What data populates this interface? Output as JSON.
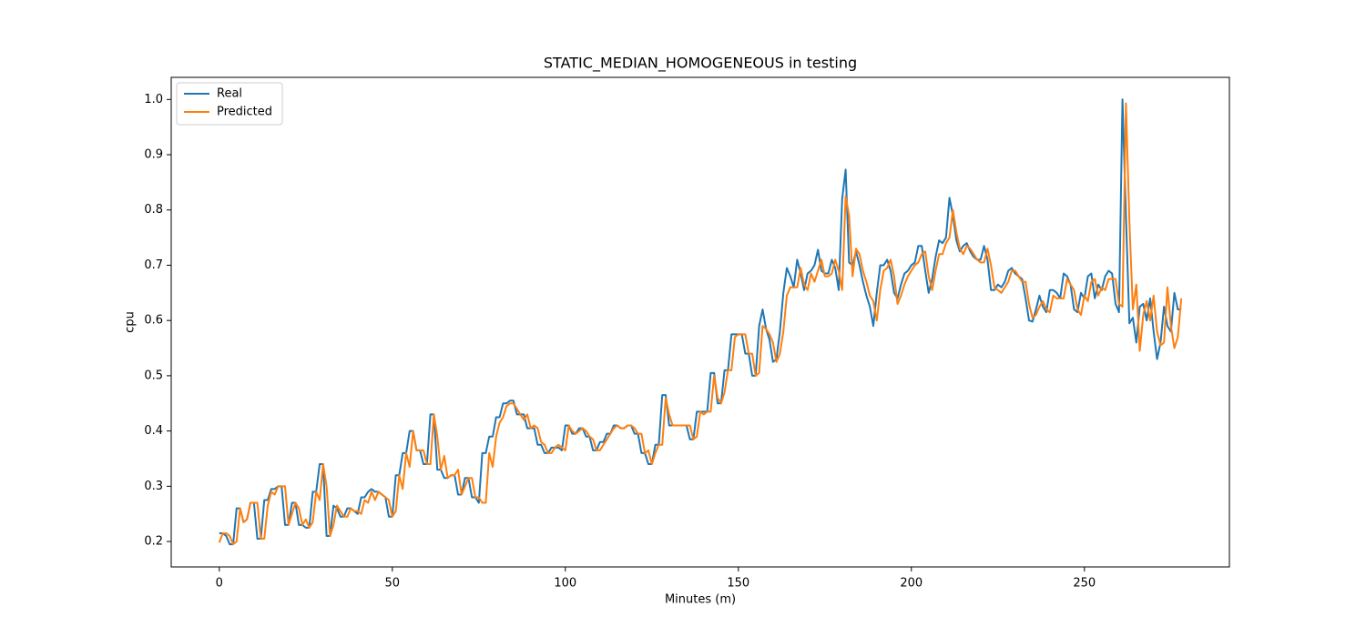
{
  "chart_data": {
    "type": "line",
    "title": "STATIC_MEDIAN_HOMOGENEOUS in testing",
    "xlabel": "Minutes (m)",
    "ylabel": "cpu",
    "x": [
      0,
      1,
      2,
      3,
      4,
      5,
      6,
      7,
      8,
      9,
      10,
      11,
      12,
      13,
      14,
      15,
      16,
      17,
      18,
      19,
      20,
      21,
      22,
      23,
      24,
      25,
      26,
      27,
      28,
      29,
      30,
      31,
      32,
      33,
      34,
      35,
      36,
      37,
      38,
      39,
      40,
      41,
      42,
      43,
      44,
      45,
      46,
      47,
      48,
      49,
      50,
      51,
      52,
      53,
      54,
      55,
      56,
      57,
      58,
      59,
      60,
      61,
      62,
      63,
      64,
      65,
      66,
      67,
      68,
      69,
      70,
      71,
      72,
      73,
      74,
      75,
      76,
      77,
      78,
      79,
      80,
      81,
      82,
      83,
      84,
      85,
      86,
      87,
      88,
      89,
      90,
      91,
      92,
      93,
      94,
      95,
      96,
      97,
      98,
      99,
      100,
      101,
      102,
      103,
      104,
      105,
      106,
      107,
      108,
      109,
      110,
      111,
      112,
      113,
      114,
      115,
      116,
      117,
      118,
      119,
      120,
      121,
      122,
      123,
      124,
      125,
      126,
      127,
      128,
      129,
      130,
      131,
      132,
      133,
      134,
      135,
      136,
      137,
      138,
      139,
      140,
      141,
      142,
      143,
      144,
      145,
      146,
      147,
      148,
      149,
      150,
      151,
      152,
      153,
      154,
      155,
      156,
      157,
      158,
      159,
      160,
      161,
      162,
      163,
      164,
      165,
      166,
      167,
      168,
      169,
      170,
      171,
      172,
      173,
      174,
      175,
      176,
      177,
      178,
      179,
      180,
      181,
      182,
      183,
      184,
      185,
      186,
      187,
      188,
      189,
      190,
      191,
      192,
      193,
      194,
      195,
      196,
      197,
      198,
      199,
      200,
      201,
      202,
      203,
      204,
      205,
      206,
      207,
      208,
      209,
      210,
      211,
      212,
      213,
      214,
      215,
      216,
      217,
      218,
      219,
      220,
      221,
      222,
      223,
      224,
      225,
      226,
      227,
      228,
      229,
      230,
      231,
      232,
      233,
      234,
      235,
      236,
      237,
      238,
      239,
      240,
      241,
      242,
      243,
      244,
      245,
      246,
      247,
      248,
      249,
      250,
      251,
      252,
      253,
      254,
      255,
      256,
      257,
      258,
      259,
      260,
      261,
      262,
      263,
      264,
      265,
      266,
      267,
      268,
      269,
      270,
      271,
      272,
      273,
      274,
      275,
      276,
      277,
      278
    ],
    "series": [
      {
        "name": "Real",
        "color": "#1f77b4",
        "values": [
          0.215,
          0.215,
          0.21,
          0.195,
          0.195,
          0.26,
          0.26,
          0.235,
          0.24,
          0.27,
          0.27,
          0.205,
          0.205,
          0.275,
          0.275,
          0.295,
          0.295,
          0.3,
          0.3,
          0.23,
          0.23,
          0.27,
          0.27,
          0.23,
          0.23,
          0.225,
          0.225,
          0.29,
          0.29,
          0.34,
          0.34,
          0.21,
          0.21,
          0.265,
          0.26,
          0.245,
          0.245,
          0.26,
          0.26,
          0.255,
          0.25,
          0.28,
          0.28,
          0.29,
          0.295,
          0.29,
          0.29,
          0.285,
          0.28,
          0.245,
          0.245,
          0.32,
          0.32,
          0.36,
          0.36,
          0.4,
          0.4,
          0.365,
          0.365,
          0.34,
          0.34,
          0.43,
          0.43,
          0.33,
          0.33,
          0.315,
          0.315,
          0.32,
          0.32,
          0.285,
          0.285,
          0.315,
          0.315,
          0.28,
          0.28,
          0.27,
          0.36,
          0.36,
          0.39,
          0.39,
          0.425,
          0.425,
          0.45,
          0.45,
          0.455,
          0.455,
          0.43,
          0.43,
          0.43,
          0.405,
          0.405,
          0.405,
          0.375,
          0.375,
          0.36,
          0.36,
          0.37,
          0.37,
          0.37,
          0.365,
          0.41,
          0.41,
          0.395,
          0.395,
          0.405,
          0.405,
          0.39,
          0.39,
          0.365,
          0.365,
          0.38,
          0.38,
          0.395,
          0.395,
          0.41,
          0.41,
          0.405,
          0.405,
          0.41,
          0.41,
          0.395,
          0.395,
          0.36,
          0.36,
          0.34,
          0.34,
          0.375,
          0.375,
          0.465,
          0.465,
          0.41,
          0.41,
          0.41,
          0.41,
          0.41,
          0.41,
          0.385,
          0.385,
          0.435,
          0.435,
          0.435,
          0.435,
          0.505,
          0.505,
          0.45,
          0.45,
          0.51,
          0.51,
          0.575,
          0.575,
          0.575,
          0.575,
          0.54,
          0.54,
          0.5,
          0.5,
          0.59,
          0.62,
          0.585,
          0.565,
          0.525,
          0.53,
          0.58,
          0.65,
          0.695,
          0.68,
          0.66,
          0.71,
          0.685,
          0.655,
          0.685,
          0.69,
          0.7,
          0.728,
          0.69,
          0.685,
          0.685,
          0.71,
          0.695,
          0.655,
          0.82,
          0.873,
          0.705,
          0.7,
          0.725,
          0.7,
          0.67,
          0.645,
          0.625,
          0.59,
          0.65,
          0.7,
          0.7,
          0.71,
          0.69,
          0.65,
          0.64,
          0.665,
          0.685,
          0.69,
          0.7,
          0.705,
          0.735,
          0.735,
          0.69,
          0.65,
          0.675,
          0.715,
          0.745,
          0.74,
          0.75,
          0.822,
          0.79,
          0.745,
          0.725,
          0.735,
          0.74,
          0.725,
          0.715,
          0.71,
          0.71,
          0.735,
          0.71,
          0.655,
          0.655,
          0.665,
          0.66,
          0.67,
          0.69,
          0.695,
          0.685,
          0.68,
          0.675,
          0.64,
          0.6,
          0.598,
          0.62,
          0.645,
          0.625,
          0.615,
          0.655,
          0.655,
          0.65,
          0.64,
          0.685,
          0.68,
          0.665,
          0.62,
          0.615,
          0.65,
          0.64,
          0.68,
          0.685,
          0.64,
          0.665,
          0.655,
          0.68,
          0.69,
          0.685,
          0.63,
          0.615,
          1.0,
          0.79,
          0.595,
          0.605,
          0.56,
          0.625,
          0.63,
          0.6,
          0.64,
          0.58,
          0.53,
          0.56,
          0.625,
          0.59,
          0.58,
          0.65,
          0.62,
          0.62
        ]
      },
      {
        "name": "Predicted",
        "color": "#ff7f0e",
        "values": [
          0.198,
          0.215,
          0.215,
          0.21,
          0.195,
          0.2,
          0.26,
          0.235,
          0.24,
          0.27,
          0.27,
          0.27,
          0.205,
          0.205,
          0.265,
          0.29,
          0.285,
          0.3,
          0.3,
          0.3,
          0.23,
          0.25,
          0.27,
          0.26,
          0.23,
          0.24,
          0.225,
          0.235,
          0.29,
          0.275,
          0.34,
          0.3,
          0.21,
          0.23,
          0.265,
          0.255,
          0.245,
          0.245,
          0.26,
          0.255,
          0.255,
          0.25,
          0.275,
          0.27,
          0.29,
          0.275,
          0.29,
          0.285,
          0.28,
          0.275,
          0.245,
          0.255,
          0.32,
          0.295,
          0.36,
          0.335,
          0.4,
          0.365,
          0.365,
          0.365,
          0.34,
          0.34,
          0.43,
          0.39,
          0.33,
          0.355,
          0.315,
          0.32,
          0.32,
          0.33,
          0.285,
          0.3,
          0.315,
          0.315,
          0.28,
          0.28,
          0.27,
          0.27,
          0.36,
          0.335,
          0.39,
          0.415,
          0.425,
          0.445,
          0.45,
          0.45,
          0.44,
          0.43,
          0.42,
          0.43,
          0.405,
          0.41,
          0.405,
          0.38,
          0.375,
          0.36,
          0.36,
          0.37,
          0.375,
          0.37,
          0.365,
          0.41,
          0.4,
          0.395,
          0.4,
          0.405,
          0.4,
          0.39,
          0.385,
          0.365,
          0.365,
          0.375,
          0.385,
          0.395,
          0.405,
          0.41,
          0.405,
          0.405,
          0.41,
          0.41,
          0.405,
          0.395,
          0.395,
          0.36,
          0.365,
          0.34,
          0.36,
          0.375,
          0.375,
          0.46,
          0.43,
          0.41,
          0.41,
          0.41,
          0.41,
          0.41,
          0.41,
          0.385,
          0.39,
          0.435,
          0.43,
          0.435,
          0.435,
          0.5,
          0.46,
          0.45,
          0.47,
          0.51,
          0.51,
          0.57,
          0.575,
          0.575,
          0.575,
          0.54,
          0.54,
          0.5,
          0.505,
          0.59,
          0.585,
          0.575,
          0.56,
          0.525,
          0.54,
          0.58,
          0.645,
          0.66,
          0.66,
          0.66,
          0.695,
          0.665,
          0.655,
          0.685,
          0.67,
          0.69,
          0.71,
          0.68,
          0.68,
          0.685,
          0.71,
          0.69,
          0.655,
          0.825,
          0.79,
          0.68,
          0.73,
          0.72,
          0.69,
          0.67,
          0.645,
          0.635,
          0.6,
          0.655,
          0.69,
          0.695,
          0.71,
          0.68,
          0.63,
          0.645,
          0.665,
          0.68,
          0.69,
          0.7,
          0.705,
          0.72,
          0.725,
          0.68,
          0.655,
          0.69,
          0.72,
          0.72,
          0.74,
          0.75,
          0.8,
          0.76,
          0.73,
          0.72,
          0.735,
          0.73,
          0.72,
          0.71,
          0.705,
          0.705,
          0.73,
          0.7,
          0.66,
          0.655,
          0.65,
          0.66,
          0.67,
          0.69,
          0.69,
          0.68,
          0.67,
          0.67,
          0.63,
          0.605,
          0.61,
          0.625,
          0.635,
          0.62,
          0.615,
          0.645,
          0.64,
          0.64,
          0.64,
          0.675,
          0.665,
          0.655,
          0.62,
          0.61,
          0.645,
          0.635,
          0.67,
          0.675,
          0.645,
          0.66,
          0.655,
          0.675,
          0.675,
          0.675,
          0.63,
          0.625,
          0.993,
          0.78,
          0.62,
          0.665,
          0.545,
          0.61,
          0.635,
          0.6,
          0.645,
          0.58,
          0.555,
          0.56,
          0.66,
          0.59,
          0.55,
          0.57,
          0.64
        ]
      }
    ],
    "xlim": [
      -13.9,
      291.9
    ],
    "ylim": [
      0.154,
      1.04
    ],
    "xticks": [
      0,
      50,
      100,
      150,
      200,
      250
    ],
    "yticks": [
      0.2,
      0.3,
      0.4,
      0.5,
      0.6,
      0.7,
      0.8,
      0.9,
      {
        "value": 1,
        "label": "1.0"
      }
    ],
    "legend": "upper left"
  }
}
